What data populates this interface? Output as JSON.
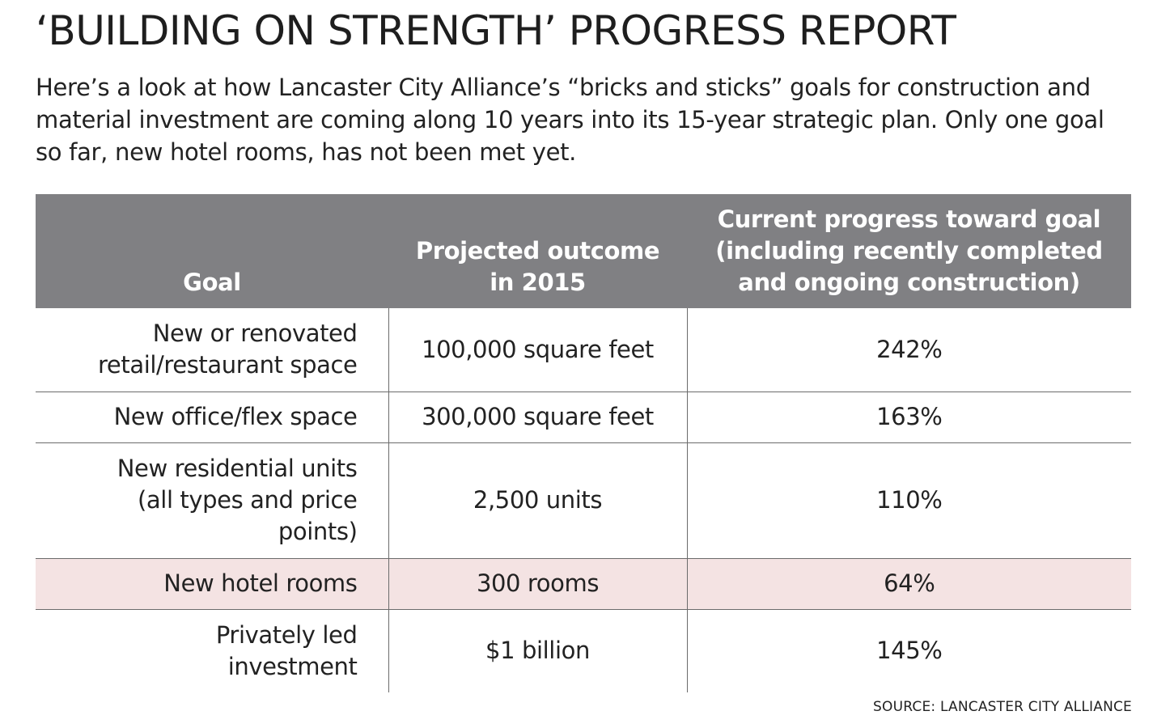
{
  "title": "‘BUILDING ON STRENGTH’ PROGRESS REPORT",
  "intro": "Here’s a look at how Lancaster City Alliance’s “bricks and sticks” goals for construction and material investment are coming along 10 years into its 15-year strategic plan. Only one goal so far, new hotel rooms, has not been met yet.",
  "source": "SOURCE: LANCASTER CITY ALLIANCE",
  "colors": {
    "header_bg": "#808083",
    "highlight_row": "#f4e3e3"
  },
  "chart_data": {
    "type": "table",
    "title": "‘BUILDING ON STRENGTH’ PROGRESS REPORT",
    "columns": [
      "Goal",
      "Projected outcome in 2015",
      "Current progress toward goal (including recently completed and ongoing construction)"
    ],
    "rows": [
      {
        "goal": "New or renovated retail/restaurant space",
        "projected": "100,000 square feet",
        "progress": "242%",
        "highlight": false
      },
      {
        "goal": "New office/flex space",
        "projected": "300,000 square feet",
        "progress": "163%",
        "highlight": false
      },
      {
        "goal": "New residential units (all types and price points)",
        "projected": "2,500 units",
        "progress": "110%",
        "highlight": false
      },
      {
        "goal": "New hotel rooms",
        "projected": "300 rooms",
        "progress": "64%",
        "highlight": true
      },
      {
        "goal": "Privately led investment",
        "projected": "$1 billion",
        "progress": "145%",
        "highlight": false
      }
    ]
  }
}
